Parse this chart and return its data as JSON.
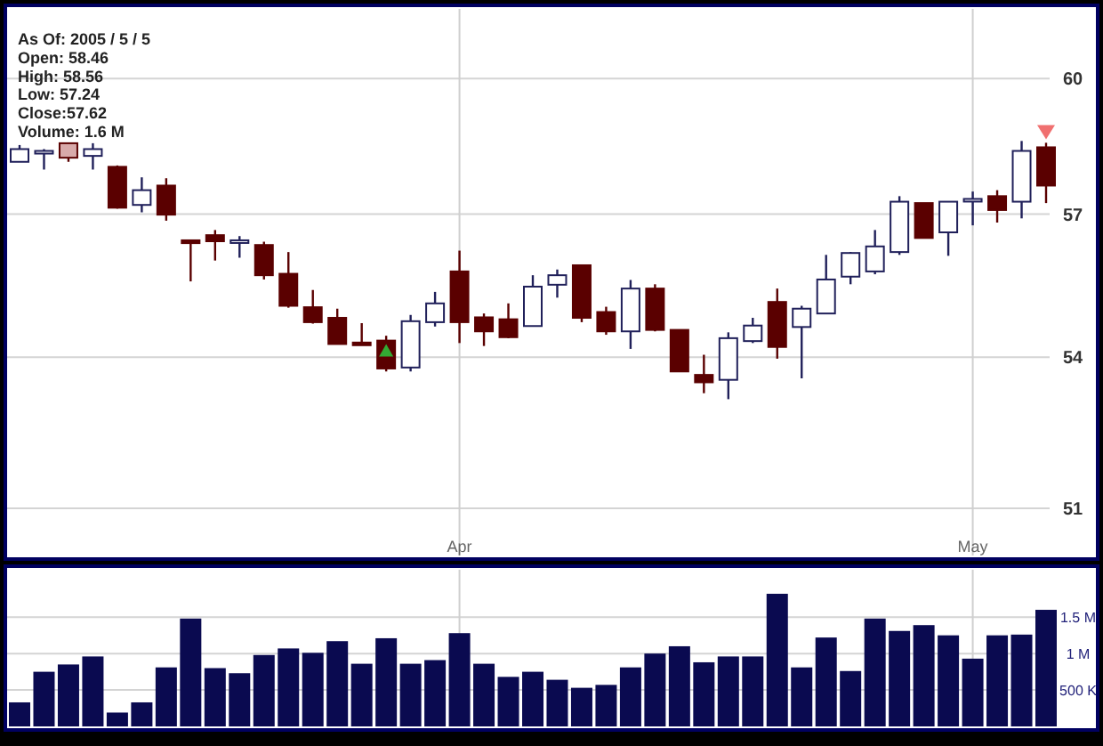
{
  "chart_data": [
    {
      "type": "candlestick",
      "categories": [
        null,
        null,
        null,
        null,
        null,
        null,
        null,
        null,
        null,
        null,
        null,
        null,
        null,
        null,
        null,
        null,
        null,
        null,
        "Apr",
        null,
        null,
        null,
        null,
        null,
        null,
        null,
        null,
        null,
        null,
        null,
        null,
        null,
        null,
        null,
        null,
        null,
        null,
        null,
        null,
        "May",
        null,
        null,
        null
      ],
      "ohlc": [
        [
          58.14,
          58.51,
          58.14,
          58.42
        ],
        [
          58.36,
          58.42,
          57.97,
          58.38
        ],
        [
          58.55,
          58.55,
          58.14,
          58.23
        ],
        [
          58.27,
          58.55,
          57.97,
          58.42
        ],
        [
          58.03,
          58.06,
          57.12,
          57.14
        ],
        [
          57.2,
          57.8,
          57.04,
          57.52
        ],
        [
          57.62,
          57.78,
          56.86,
          56.99
        ],
        [
          56.44,
          56.44,
          55.57,
          56.38
        ],
        [
          56.55,
          56.66,
          56.01,
          56.42
        ],
        [
          56.41,
          56.53,
          56.07,
          56.44
        ],
        [
          56.34,
          56.41,
          55.61,
          55.7
        ],
        [
          55.73,
          56.19,
          55.02,
          55.06
        ],
        [
          55.03,
          55.39,
          54.69,
          54.72
        ],
        [
          54.81,
          55.0,
          54.26,
          54.27
        ],
        [
          54.3,
          54.7,
          54.25,
          54.26
        ],
        [
          54.34,
          54.44,
          53.71,
          53.77
        ],
        [
          53.79,
          54.87,
          53.71,
          54.74
        ],
        [
          54.72,
          55.35,
          54.63,
          55.11
        ],
        [
          55.78,
          56.22,
          54.29,
          54.72
        ],
        [
          54.82,
          54.9,
          54.23,
          54.53
        ],
        [
          54.78,
          55.11,
          54.39,
          54.41
        ],
        [
          54.64,
          55.7,
          54.64,
          55.46
        ],
        [
          55.5,
          55.82,
          55.23,
          55.7
        ],
        [
          55.91,
          55.91,
          54.72,
          54.81
        ],
        [
          54.93,
          55.04,
          54.46,
          54.53
        ],
        [
          54.53,
          55.6,
          54.17,
          55.42
        ],
        [
          55.42,
          55.51,
          54.53,
          54.56
        ],
        [
          54.56,
          54.56,
          53.71,
          53.71
        ],
        [
          53.64,
          54.05,
          53.27,
          53.49
        ],
        [
          53.54,
          54.51,
          53.15,
          54.39
        ],
        [
          54.33,
          54.81,
          54.29,
          54.65
        ],
        [
          55.14,
          55.42,
          53.97,
          54.21
        ],
        [
          54.62,
          55.06,
          53.57,
          55.0
        ],
        [
          54.9,
          56.13,
          54.9,
          55.61
        ],
        [
          55.67,
          56.19,
          55.51,
          56.17
        ],
        [
          55.78,
          56.66,
          55.72,
          56.31
        ],
        [
          56.19,
          57.39,
          56.13,
          57.27
        ],
        [
          57.24,
          57.24,
          56.49,
          56.49
        ],
        [
          56.61,
          57.27,
          56.11,
          57.27
        ],
        [
          57.3,
          57.49,
          56.76,
          57.33
        ],
        [
          57.39,
          57.52,
          56.82,
          57.09
        ],
        [
          57.27,
          58.6,
          56.91,
          58.38
        ],
        [
          58.46,
          58.56,
          57.24,
          57.62
        ]
      ],
      "colors": [
        "#ffffff",
        "#ffffff",
        "#d8aaaa",
        "#ffffff",
        "#5a0000",
        "#ffffff",
        "#5a0000",
        "#5a0000",
        "#5a0000",
        "#ffffff",
        "#5a0000",
        "#5a0000",
        "#5a0000",
        "#5a0000",
        "#5a0000",
        "#5a0000",
        "#ffffff",
        "#ffffff",
        "#5a0000",
        "#5a0000",
        "#5a0000",
        "#ffffff",
        "#ffffff",
        "#5a0000",
        "#5a0000",
        "#ffffff",
        "#5a0000",
        "#5a0000",
        "#5a0000",
        "#ffffff",
        "#ffffff",
        "#5a0000",
        "#ffffff",
        "#ffffff",
        "#ffffff",
        "#ffffff",
        "#ffffff",
        "#5a0000",
        "#ffffff",
        "#ffffff",
        "#5a0000",
        "#ffffff",
        "#5a0000"
      ],
      "log": "y",
      "ylim": [
        50.1,
        61.6
      ],
      "yticks": [
        51,
        54,
        57,
        60
      ],
      "grid": true,
      "annotations": [
        "As Of: 2005 / 5 / 5",
        "Open: 58.46",
        "High: 58.56",
        "Low: 57.24",
        "Close:57.62",
        "Volume: 1.6 M"
      ]
    },
    {
      "type": "bar",
      "categories": [
        null,
        null,
        null,
        null,
        null,
        null,
        null,
        null,
        null,
        null,
        null,
        null,
        null,
        null,
        null,
        null,
        null,
        null,
        null,
        null,
        null,
        null,
        null,
        null,
        null,
        null,
        null,
        null,
        null,
        null,
        null,
        null,
        null,
        null,
        null,
        null,
        null,
        null,
        null,
        null,
        null,
        null,
        null
      ],
      "values": [
        0.33,
        0.75,
        0.85,
        0.96,
        0.19,
        0.33,
        0.81,
        1.48,
        0.8,
        0.73,
        0.98,
        1.07,
        1.01,
        1.17,
        0.86,
        1.21,
        0.86,
        0.91,
        1.28,
        0.86,
        0.68,
        0.75,
        0.64,
        0.53,
        0.57,
        0.81,
        1.0,
        1.1,
        0.88,
        0.96,
        0.96,
        1.82,
        0.81,
        1.22,
        0.76,
        1.48,
        1.31,
        1.39,
        1.25,
        0.93,
        1.25,
        1.26,
        1.6
      ],
      "color": "#0a0a50",
      "ylim": [
        0,
        2.15
      ],
      "yticks": [
        {
          "value": 0.5,
          "label": "500 K"
        },
        {
          "value": 1,
          "label": "1 M"
        },
        {
          "value": 1.5,
          "label": "1.5 M"
        }
      ],
      "grid": true,
      "tick_labels": "y"
    }
  ]
}
